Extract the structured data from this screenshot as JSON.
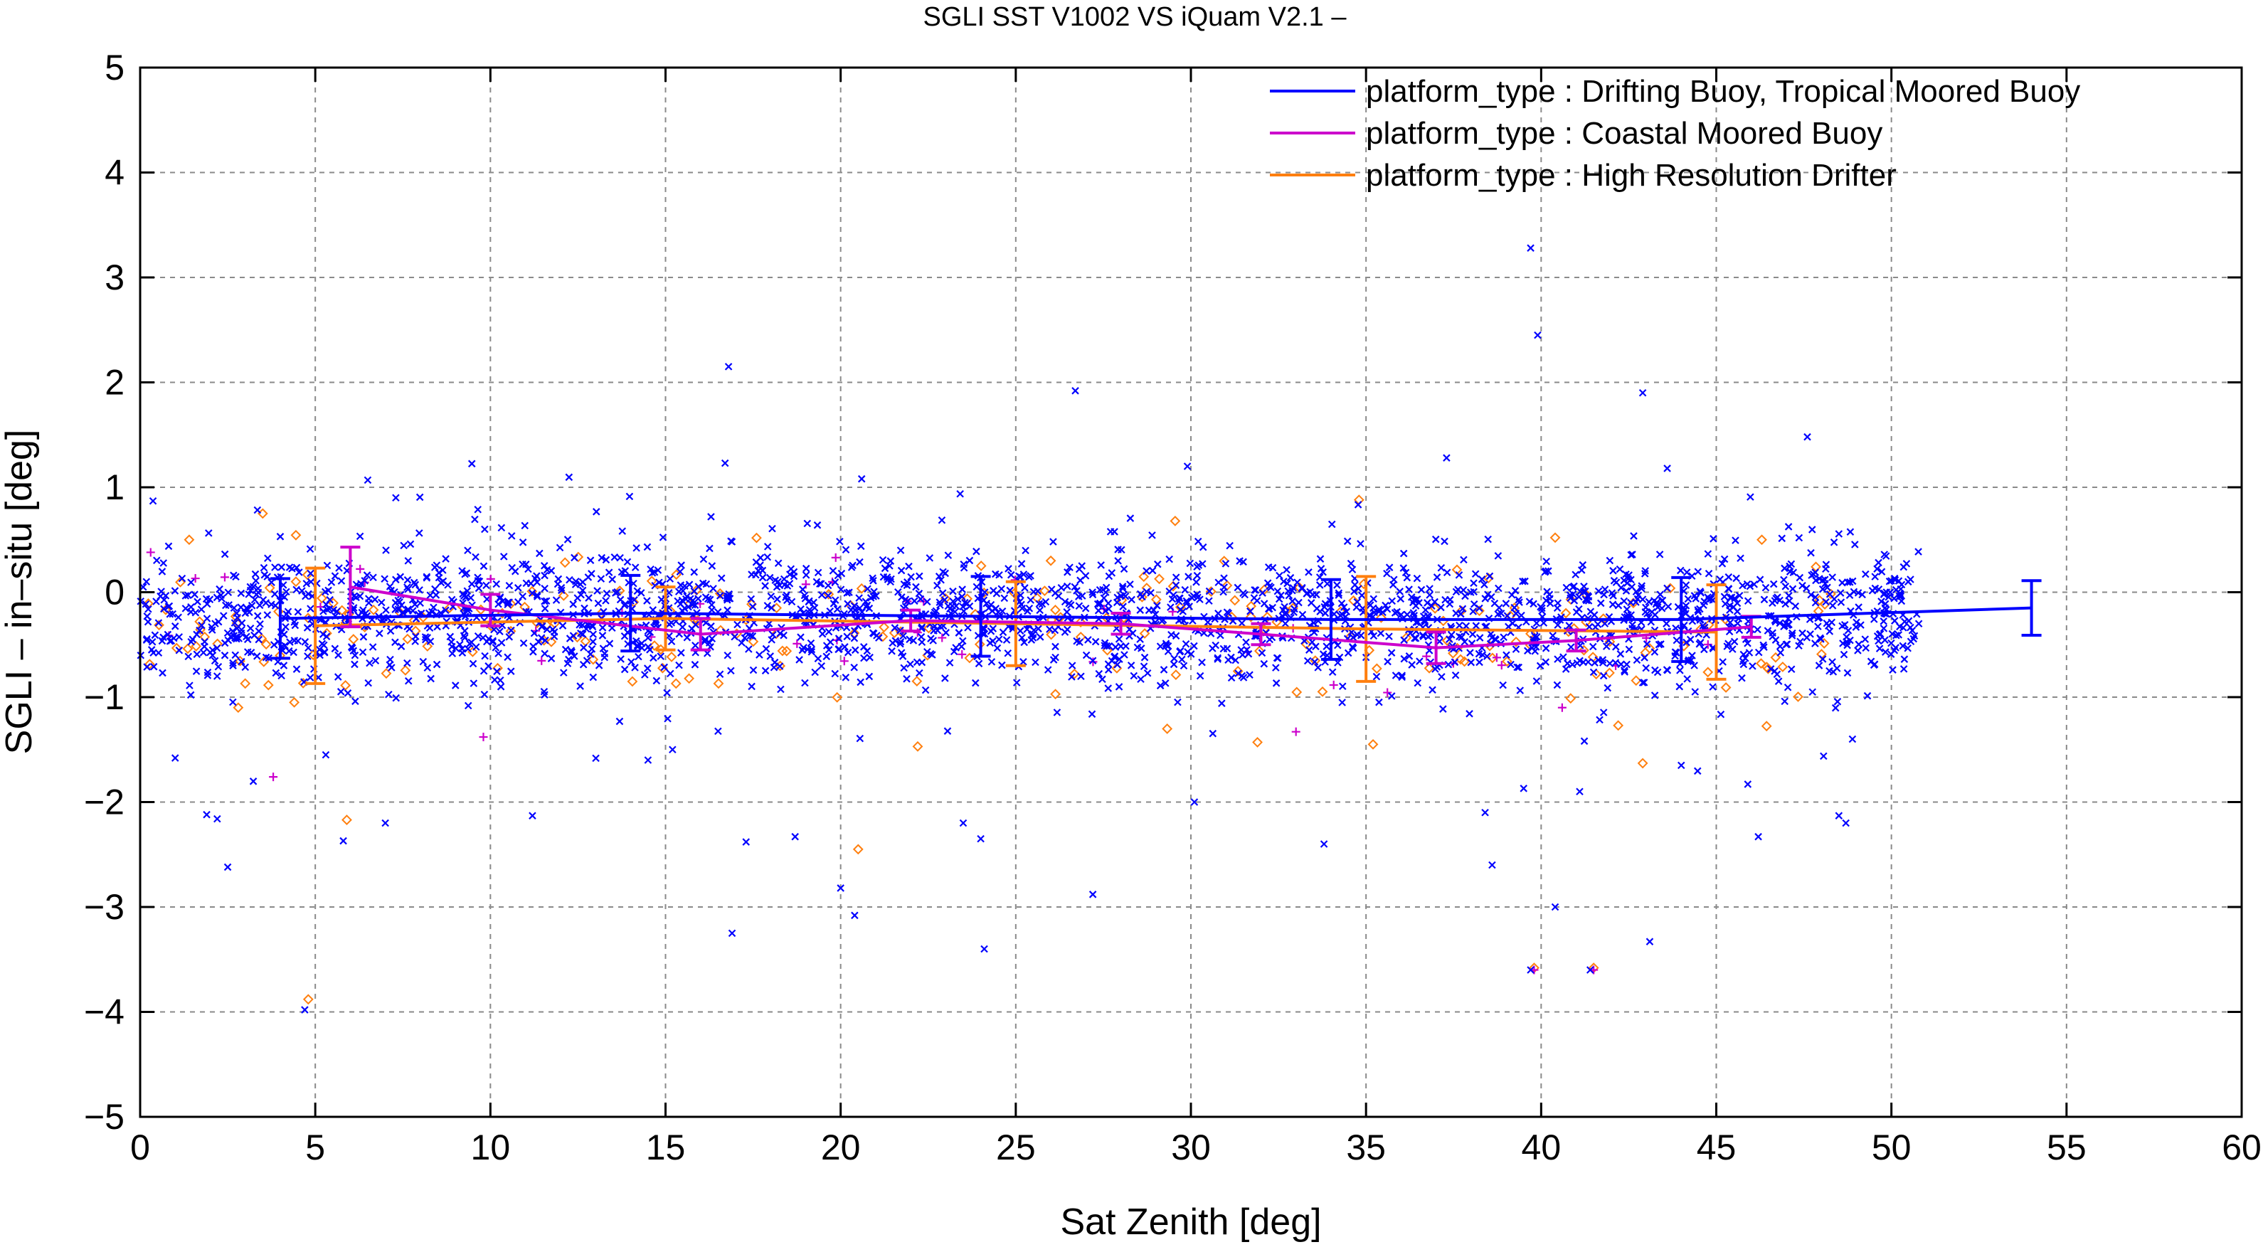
{
  "chart_data": {
    "type": "scatter",
    "title": "SGLI SST V1002 VS iQuam V2.1  –",
    "xlabel": "Sat Zenith [deg]",
    "ylabel": "SGLI – in–situ [deg]",
    "xlim": [
      0,
      60
    ],
    "ylim": [
      -5,
      5
    ],
    "x_ticks": [
      0,
      5,
      10,
      15,
      20,
      25,
      30,
      35,
      40,
      45,
      50,
      55,
      60
    ],
    "x_tick_labels": [
      "0",
      "5",
      "10",
      "15",
      "20",
      "25",
      "30",
      "35",
      "40",
      "45",
      "50",
      "55",
      "60"
    ],
    "y_ticks": [
      -5,
      -4,
      -3,
      -2,
      -1,
      0,
      1,
      2,
      3,
      4,
      5
    ],
    "y_tick_labels": [
      "−5",
      "−4",
      "−3",
      "−2",
      "−1",
      "0",
      "1",
      "2",
      "3",
      "4",
      "5"
    ],
    "grid": true,
    "legend_position": "top-right",
    "series": [
      {
        "name": "platform_type : Drifting Buoy, Tropical Moored Buoy",
        "color": "#0000ff",
        "marker": "x",
        "mean_x": [
          4,
          14,
          24,
          34,
          44,
          54
        ],
        "mean_y": [
          -0.25,
          -0.2,
          -0.23,
          -0.26,
          -0.26,
          -0.15
        ],
        "std": [
          0.38,
          0.36,
          0.38,
          0.38,
          0.4,
          0.26
        ],
        "outliers": [
          {
            "x": 16.8,
            "y": 2.15
          },
          {
            "x": 16.7,
            "y": 1.23
          },
          {
            "x": 26.7,
            "y": 1.92
          },
          {
            "x": 29.9,
            "y": 1.2
          },
          {
            "x": 20.6,
            "y": 1.08
          },
          {
            "x": 39.7,
            "y": 3.28
          },
          {
            "x": 39.9,
            "y": 2.45
          },
          {
            "x": 42.9,
            "y": 1.9
          },
          {
            "x": 47.6,
            "y": 1.48
          },
          {
            "x": 43.6,
            "y": 1.18
          },
          {
            "x": 37.3,
            "y": 1.28
          },
          {
            "x": 7.3,
            "y": 0.9
          },
          {
            "x": 2.5,
            "y": -2.62
          },
          {
            "x": 1.9,
            "y": -2.12
          },
          {
            "x": 2.2,
            "y": -2.16
          },
          {
            "x": 7.0,
            "y": -2.2
          },
          {
            "x": 11.2,
            "y": -2.13
          },
          {
            "x": 4.7,
            "y": -3.98
          },
          {
            "x": 16.9,
            "y": -3.25
          },
          {
            "x": 20.0,
            "y": -2.82
          },
          {
            "x": 20.4,
            "y": -3.08
          },
          {
            "x": 24.1,
            "y": -3.4
          },
          {
            "x": 27.2,
            "y": -2.88
          },
          {
            "x": 23.5,
            "y": -2.2
          },
          {
            "x": 24.0,
            "y": -2.35
          },
          {
            "x": 30.1,
            "y": -2.0
          },
          {
            "x": 33.8,
            "y": -2.4
          },
          {
            "x": 38.6,
            "y": -2.6
          },
          {
            "x": 40.4,
            "y": -3.0
          },
          {
            "x": 41.4,
            "y": -3.6
          },
          {
            "x": 43.1,
            "y": -3.33
          },
          {
            "x": 39.7,
            "y": -3.6
          },
          {
            "x": 46.2,
            "y": -2.33
          },
          {
            "x": 48.5,
            "y": -2.13
          },
          {
            "x": 48.7,
            "y": -2.2
          },
          {
            "x": 17.3,
            "y": -2.38
          },
          {
            "x": 18.7,
            "y": -2.33
          },
          {
            "x": 5.8,
            "y": -2.37
          },
          {
            "x": 1.0,
            "y": -1.58
          },
          {
            "x": 5.3,
            "y": -1.55
          },
          {
            "x": 14.5,
            "y": -1.6
          },
          {
            "x": 15.2,
            "y": -1.5
          },
          {
            "x": 41.1,
            "y": -1.9
          },
          {
            "x": 39.5,
            "y": -1.87
          },
          {
            "x": 45.9,
            "y": -1.83
          },
          {
            "x": 44.0,
            "y": -1.65
          },
          {
            "x": 38.4,
            "y": -2.1
          }
        ]
      },
      {
        "name": "platform_type : Coastal Moored Buoy",
        "color": "#cc00cc",
        "marker": "+",
        "mean_x": [
          6,
          10,
          16,
          22,
          28,
          32,
          37,
          41,
          46
        ],
        "mean_y": [
          0.05,
          -0.17,
          -0.4,
          -0.27,
          -0.3,
          -0.4,
          -0.53,
          -0.46,
          -0.33
        ],
        "std": [
          0.38,
          0.15,
          0.15,
          0.1,
          0.1,
          0.1,
          0.15,
          0.1,
          0.1
        ],
        "outliers": [
          {
            "x": 0.3,
            "y": 0.38
          },
          {
            "x": 3.8,
            "y": -1.76
          },
          {
            "x": 9.8,
            "y": -1.38
          },
          {
            "x": 33.0,
            "y": -1.33
          },
          {
            "x": 40.6,
            "y": -1.1
          },
          {
            "x": 39.8,
            "y": -3.6
          },
          {
            "x": 41.5,
            "y": -3.6
          }
        ]
      },
      {
        "name": "platform_type : High Resolution Drifter",
        "color": "#ff7f0e",
        "marker": "diamond",
        "mean_x": [
          5,
          15,
          25,
          35,
          45
        ],
        "mean_y": [
          -0.32,
          -0.25,
          -0.3,
          -0.35,
          -0.38
        ],
        "std": [
          0.55,
          0.3,
          0.4,
          0.5,
          0.45
        ],
        "outliers": [
          {
            "x": 3.5,
            "y": 0.75
          },
          {
            "x": 1.4,
            "y": 0.5
          },
          {
            "x": 4.8,
            "y": -3.88
          },
          {
            "x": 5.9,
            "y": -2.17
          },
          {
            "x": 20.5,
            "y": -2.45
          },
          {
            "x": 39.8,
            "y": -3.58
          },
          {
            "x": 41.5,
            "y": -3.58
          },
          {
            "x": 42.9,
            "y": -1.63
          },
          {
            "x": 42.2,
            "y": -1.27
          },
          {
            "x": 34.8,
            "y": 0.88
          },
          {
            "x": 40.4,
            "y": 0.52
          },
          {
            "x": 46.3,
            "y": 0.5
          },
          {
            "x": 35.2,
            "y": -1.45
          },
          {
            "x": 31.9,
            "y": -1.43
          },
          {
            "x": 22.2,
            "y": -1.47
          },
          {
            "x": 4.4,
            "y": -1.05
          },
          {
            "x": 2.8,
            "y": -1.1
          },
          {
            "x": 3.0,
            "y": -0.87
          },
          {
            "x": 15.3,
            "y": -0.87
          },
          {
            "x": 26.0,
            "y": 0.3
          }
        ]
      }
    ]
  }
}
